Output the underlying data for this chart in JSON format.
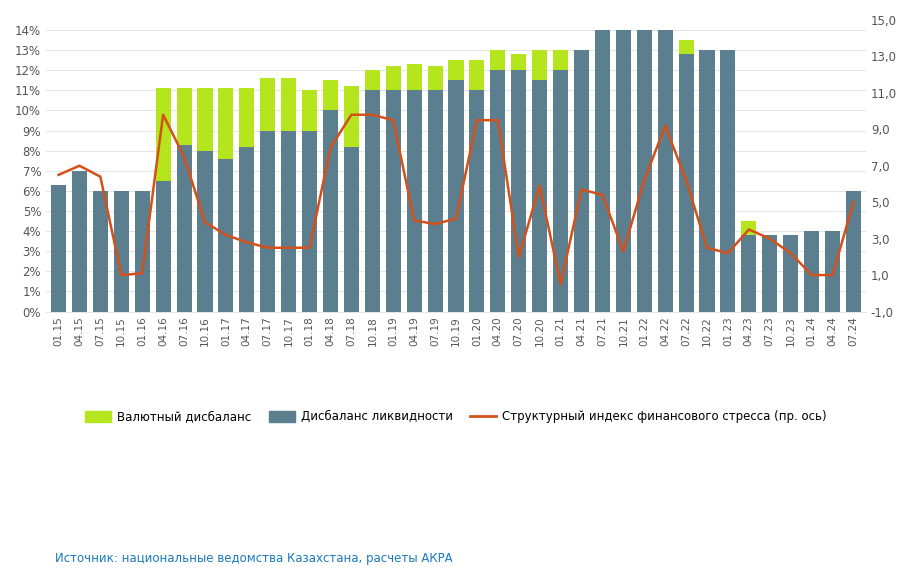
{
  "categories": [
    "01.15",
    "04.15",
    "07.15",
    "10.15",
    "01.16",
    "04.16",
    "07.16",
    "10.16",
    "01.17",
    "04.17",
    "07.17",
    "10.17",
    "01.18",
    "04.18",
    "07.18",
    "10.18",
    "01.19",
    "04.19",
    "07.19",
    "10.19",
    "01.20",
    "04.20",
    "07.20",
    "10.20",
    "01.21",
    "04.21",
    "07.21",
    "10.21",
    "01.22",
    "04.22",
    "07.22",
    "10.22",
    "01.23",
    "04.23",
    "07.23",
    "10.23",
    "01.24",
    "04.24",
    "07.24"
  ],
  "liquidity": [
    0.063,
    0.07,
    0.06,
    0.06,
    0.06,
    0.065,
    0.083,
    0.08,
    0.076,
    0.082,
    0.09,
    0.09,
    0.09,
    0.1,
    0.082,
    0.11,
    0.11,
    0.11,
    0.11,
    0.115,
    0.11,
    0.12,
    0.12,
    0.115,
    0.12,
    0.13,
    0.14,
    0.14,
    0.14,
    0.14,
    0.128,
    0.13,
    0.13,
    0.038,
    0.038,
    0.038,
    0.04,
    0.04,
    0.06
  ],
  "currency": [
    0.0,
    0.0,
    0.0,
    0.0,
    0.0,
    0.046,
    0.028,
    0.031,
    0.035,
    0.029,
    0.026,
    0.026,
    0.02,
    0.015,
    0.03,
    0.01,
    0.012,
    0.013,
    0.012,
    0.01,
    0.015,
    0.01,
    0.008,
    0.015,
    0.01,
    0.0,
    0.0,
    0.0,
    0.0,
    0.0,
    0.007,
    0.0,
    0.0,
    0.007,
    0.0,
    0.0,
    0.0,
    0.0,
    0.0
  ],
  "stress_index": [
    6.5,
    7.0,
    6.4,
    1.0,
    1.1,
    9.8,
    7.5,
    3.9,
    3.2,
    2.8,
    2.5,
    2.5,
    2.5,
    8.0,
    9.8,
    9.8,
    9.5,
    4.0,
    3.8,
    4.1,
    9.5,
    9.5,
    2.0,
    5.9,
    0.5,
    5.7,
    5.4,
    2.3,
    6.2,
    9.2,
    6.2,
    2.5,
    2.2,
    3.5,
    3.0,
    2.2,
    1.0,
    1.0,
    5.0
  ],
  "bar_color_liquidity": "#5b7f8f",
  "bar_color_currency": "#b5e61d",
  "line_color": "#d4501a",
  "ylim_left": [
    0.0,
    0.145
  ],
  "ylim_right": [
    -1.0,
    15.0
  ],
  "yticks_left": [
    0.0,
    0.01,
    0.02,
    0.03,
    0.04,
    0.05,
    0.06,
    0.07,
    0.08,
    0.09,
    0.1,
    0.11,
    0.12,
    0.13,
    0.14
  ],
  "ytick_labels_left": [
    "0%",
    "1%",
    "2%",
    "3%",
    "4%",
    "5%",
    "6%",
    "7%",
    "8%",
    "9%",
    "10%",
    "11%",
    "12%",
    "13%",
    "14%"
  ],
  "yticks_right": [
    -1.0,
    1.0,
    3.0,
    5.0,
    7.0,
    9.0,
    11.0,
    13.0,
    15.0
  ],
  "ytick_labels_right": [
    "-1,0",
    "1,0",
    "3,0",
    "5,0",
    "7,0",
    "9,0",
    "11,0",
    "13,0",
    "15,0"
  ],
  "legend_labels": [
    "Валютный дисбаланс",
    "Дисбаланс ликвидности",
    "Структурный индекс финансового стресса (пр. ось)"
  ],
  "source_text": "Источник: национальные ведомства Казахстана, расчеты АКРА",
  "source_color": "#1a7abf",
  "background_color": "#ffffff",
  "grid_color": "#e0e0e0",
  "tick_label_color": "#555555"
}
